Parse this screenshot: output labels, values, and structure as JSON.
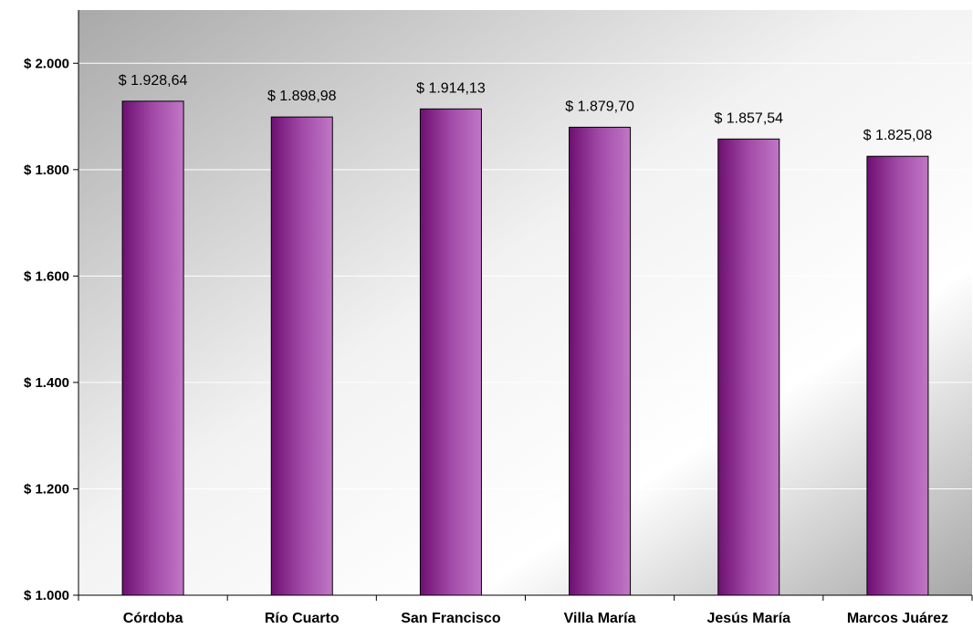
{
  "chart_data": {
    "type": "bar",
    "categories": [
      "Córdoba",
      "Río Cuarto",
      "San Francisco",
      "Villa María",
      "Jesús María",
      "Marcos Juárez"
    ],
    "values": [
      1928.64,
      1898.98,
      1914.13,
      1879.7,
      1857.54,
      1825.08
    ],
    "data_labels": [
      "$ 1.928,64",
      "$ 1.898,98",
      "$ 1.914,13",
      "$ 1.879,70",
      "$ 1.857,54",
      "$ 1.825,08"
    ],
    "ylim": [
      1000,
      2100
    ],
    "yticks": [
      1000,
      1200,
      1400,
      1600,
      1800,
      2000
    ],
    "ytick_labels": [
      "$ 1.000",
      "$ 1.200",
      "$ 1.400",
      "$ 1.600",
      "$ 1.800",
      "$ 2.000"
    ],
    "grid": true,
    "legend": "none",
    "colors": {
      "bar_dark": "#6e0f72",
      "bar_mid": "#9a3aa2",
      "bar_light": "#c077c6",
      "plot_bg_dark": "#a9a9a9",
      "plot_bg_light": "#ffffff",
      "gridline": "#ffffff"
    }
  }
}
